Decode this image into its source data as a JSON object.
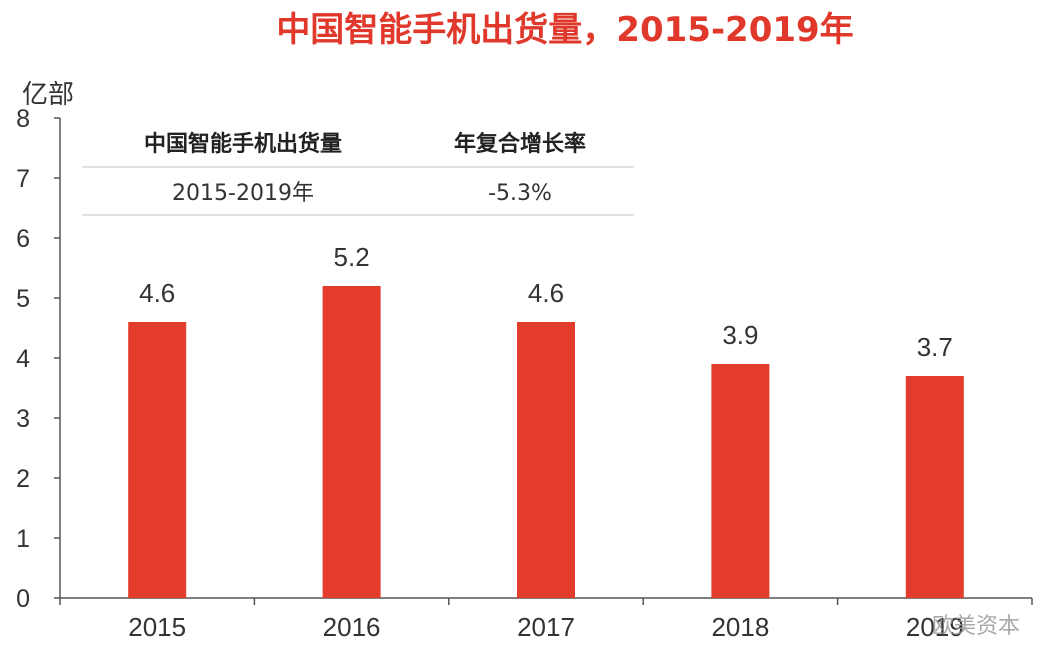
{
  "title": "中国智能手机出货量，2015-2019年",
  "unit_label": "亿部",
  "table": {
    "headers": [
      "中国智能手机出货量",
      "年复合增长率"
    ],
    "row": [
      "2015-2019年",
      "-5.3%"
    ]
  },
  "watermark": "欧美资本",
  "colors": {
    "bar": "#e33b2c",
    "title": "#e0392b"
  },
  "chart_data": {
    "type": "bar",
    "categories": [
      "2015",
      "2016",
      "2017",
      "2018",
      "2019"
    ],
    "values": [
      4.6,
      5.2,
      4.6,
      3.9,
      3.7
    ],
    "data_labels": [
      "4.6",
      "5.2",
      "4.6",
      "3.9",
      "3.7"
    ],
    "ylim": [
      0,
      8
    ],
    "yticks": [
      "0",
      "1",
      "2",
      "3",
      "4",
      "5",
      "6",
      "7",
      "8"
    ],
    "title": "中国智能手机出货量，2015-2019年",
    "ylabel": "亿部",
    "grid": false
  }
}
